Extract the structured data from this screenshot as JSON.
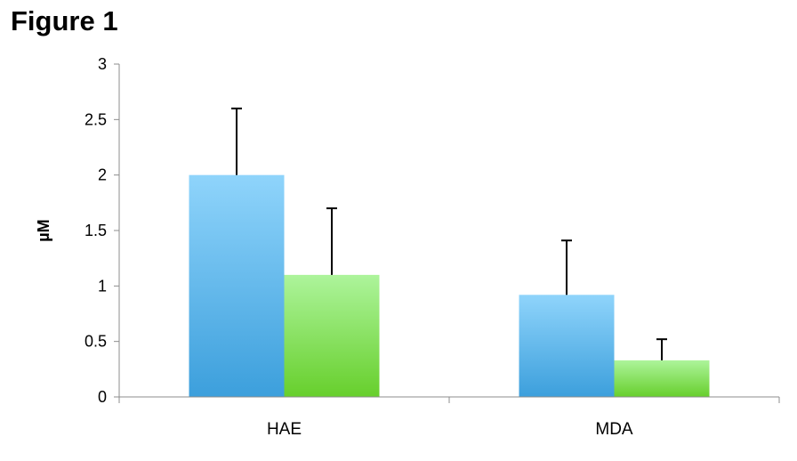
{
  "chart_data": {
    "type": "bar",
    "title": "Figure 1",
    "xlabel": "",
    "ylabel": "µM",
    "categories": [
      "HAE",
      "MDA"
    ],
    "series": [
      {
        "values": [
          2.0,
          0.92
        ],
        "errors": [
          0.6,
          0.49
        ],
        "color_top": "#8fd4fb",
        "color_bottom": "#3c9fdc"
      },
      {
        "values": [
          1.1,
          0.33
        ],
        "errors": [
          0.6,
          0.19
        ],
        "color_top": "#adf49b",
        "color_bottom": "#67cf2c"
      }
    ],
    "ylim": [
      0,
      3
    ],
    "yticks": [
      0,
      0.5,
      1,
      1.5,
      2,
      2.5,
      3
    ],
    "ytick_labels": [
      "0",
      "0.5",
      "1",
      "1.5",
      "2",
      "2.5",
      "3"
    ],
    "grid": false,
    "legend": "none"
  }
}
